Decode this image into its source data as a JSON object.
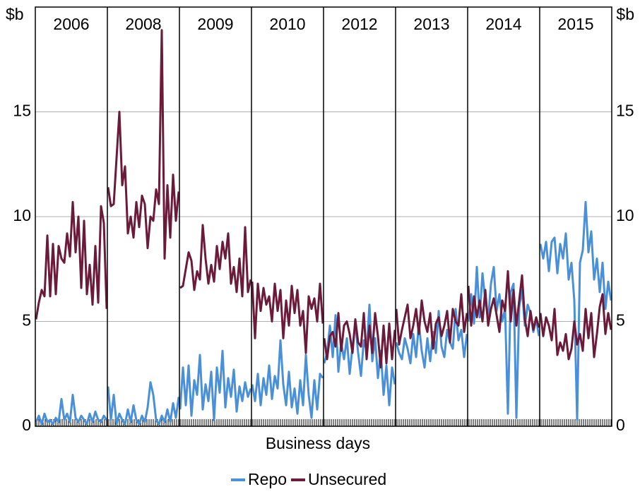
{
  "chart_data": {
    "type": "line",
    "y_unit": "$b",
    "x_label": "Business days",
    "panels": [
      "2006",
      "2008",
      "2009",
      "2010",
      "2012",
      "2013",
      "2014",
      "2015"
    ],
    "ylim": [
      0,
      20
    ],
    "yticks": [
      0,
      5,
      10,
      15
    ],
    "grid": true,
    "legend": "bottom",
    "series": [
      {
        "name": "Repo",
        "color": "#4a90d9",
        "values": [
          [
            0.2,
            0.5,
            0.1,
            0.6,
            0.2,
            0.3,
            0.1,
            0.4,
            0.2,
            1.3,
            0.3,
            0.6,
            0.2,
            1.5,
            0.4,
            0.2,
            0.5,
            0.3,
            0.1,
            0.6,
            0.2,
            0.7,
            0.3,
            0.2,
            0.5,
            0.3
          ],
          [
            1.9,
            0.3,
            1.5,
            0.1,
            0.6,
            0.3,
            0.1,
            0.8,
            0.2,
            1.0,
            0.3,
            0.1,
            0.5,
            0.2,
            0.9,
            2.1,
            1.5,
            0.3,
            0.1,
            0.5,
            0.2,
            0.8,
            0.2,
            1.1,
            0.4,
            1.4
          ],
          [
            0.8,
            2.8,
            1.0,
            2.9,
            0.5,
            2.2,
            1.5,
            3.4,
            0.8,
            2.0,
            1.2,
            2.6,
            0.3,
            2.8,
            1.6,
            3.6,
            0.9,
            2.3,
            1.4,
            2.7,
            0.7,
            1.9,
            1.2,
            2.1,
            1.4,
            1.8
          ],
          [
            2.0,
            1.2,
            2.5,
            1.0,
            2.3,
            1.5,
            2.9,
            1.3,
            2.4,
            1.8,
            4.1,
            2.0,
            1.0,
            2.6,
            0.9,
            1.8,
            0.6,
            2.2,
            1.0,
            3.4,
            1.5,
            0.4,
            2.2,
            0.8,
            2.5,
            2.3
          ],
          [
            3.0,
            3.5,
            4.8,
            3.3,
            5.3,
            2.6,
            4.0,
            3.2,
            4.2,
            2.5,
            3.8,
            4.9,
            3.5,
            2.4,
            4.1,
            3.6,
            5.8,
            3.1,
            4.2,
            2.3,
            3.6,
            1.5,
            2.9,
            1.0,
            2.8,
            2.0
          ],
          [
            4.0,
            3.5,
            3.2,
            4.2,
            3.7,
            3.0,
            4.4,
            3.3,
            4.9,
            3.6,
            2.8,
            4.2,
            3.1,
            4.5,
            3.5,
            5.5,
            3.8,
            3.3,
            4.6,
            4.0,
            3.7,
            5.6,
            4.1,
            4.6,
            3.3,
            4.4
          ],
          [
            5.0,
            6.3,
            4.9,
            7.6,
            5.2,
            7.3,
            6.0,
            5.1,
            6.8,
            7.6,
            5.5,
            6.3,
            5.0,
            5.6,
            0.6,
            6.4,
            6.8,
            0.4,
            5.7,
            6.5,
            4.8,
            5.8,
            5.4,
            4.5,
            5.1,
            4.3
          ],
          [
            8.7,
            8.0,
            8.8,
            7.4,
            8.8,
            9.0,
            7.3,
            8.7,
            8.0,
            9.2,
            7.0,
            7.8,
            6.0,
            0.3,
            7.8,
            8.4,
            10.7,
            8.3,
            9.3,
            7.0,
            8.0,
            6.4,
            7.8,
            5.6,
            6.9,
            6.0
          ]
        ]
      },
      {
        "name": "Unsecured",
        "color": "#6b1a3a",
        "values": [
          [
            5.1,
            5.9,
            6.5,
            6.2,
            9.1,
            6.2,
            8.7,
            6.3,
            8.6,
            8.0,
            7.8,
            9.2,
            8.1,
            10.7,
            8.3,
            10.0,
            6.6,
            9.8,
            6.3,
            7.7,
            5.8,
            8.6,
            5.9,
            10.5,
            9.7,
            5.6
          ],
          [
            11.4,
            10.5,
            10.6,
            12.8,
            15.0,
            11.5,
            12.4,
            9.2,
            10.0,
            9.0,
            10.7,
            9.5,
            11.0,
            10.6,
            8.5,
            10.0,
            9.8,
            11.3,
            10.6,
            18.9,
            8.0,
            11.5,
            9.0,
            12.0,
            9.8,
            11.2
          ],
          [
            6.6,
            6.7,
            7.5,
            8.3,
            7.9,
            6.5,
            7.4,
            7.0,
            9.6,
            8.0,
            6.8,
            7.7,
            6.9,
            8.6,
            7.5,
            8.8,
            8.0,
            9.2,
            6.8,
            7.6,
            6.4,
            8.0,
            6.2,
            9.5,
            6.4,
            7.0
          ],
          [
            6.9,
            4.2,
            6.8,
            5.5,
            6.6,
            5.8,
            6.2,
            5.0,
            6.8,
            5.5,
            6.5,
            4.2,
            6.0,
            4.8,
            6.7,
            5.4,
            6.5,
            4.8,
            5.5,
            3.5,
            6.2,
            5.6,
            6.1,
            5.0,
            6.8,
            4.9
          ],
          [
            4.2,
            3.2,
            4.3,
            4.5,
            3.8,
            5.4,
            3.6,
            4.8,
            5.0,
            4.4,
            3.5,
            5.1,
            4.0,
            3.8,
            5.4,
            3.2,
            4.8,
            3.5,
            5.4,
            4.3,
            2.8,
            4.8,
            3.0,
            4.9,
            3.2,
            4.6
          ],
          [
            5.6,
            3.9,
            4.6,
            5.2,
            5.8,
            4.2,
            4.8,
            5.6,
            4.4,
            6.0,
            5.0,
            4.5,
            5.4,
            3.7,
            4.9,
            5.2,
            4.3,
            4.8,
            5.5,
            4.0,
            5.6,
            5.0,
            4.8,
            6.3,
            4.5,
            5.4
          ],
          [
            6.7,
            4.8,
            6.2,
            5.2,
            6.0,
            5.0,
            6.5,
            4.8,
            5.6,
            6.1,
            5.3,
            4.5,
            6.0,
            5.5,
            7.4,
            5.0,
            6.5,
            4.8,
            6.0,
            7.2,
            5.1,
            4.3,
            5.5,
            4.6,
            5.2,
            4.7
          ],
          [
            5.4,
            4.3,
            5.2,
            4.8,
            4.1,
            5.6,
            3.4,
            4.0,
            3.6,
            4.4,
            3.2,
            3.7,
            5.0,
            3.9,
            4.4,
            3.6,
            5.6,
            4.2,
            5.4,
            3.3,
            4.4,
            5.7,
            6.3,
            4.4,
            5.4,
            4.6
          ]
        ]
      }
    ]
  }
}
